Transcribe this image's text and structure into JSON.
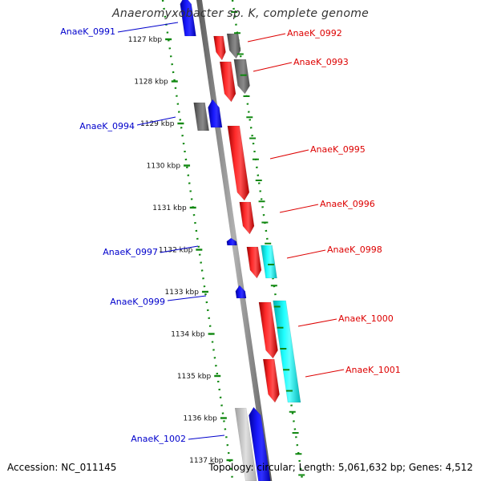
{
  "title": "Anaeromyxobacter sp. K, complete genome",
  "footer": {
    "accession": "Accession: NC_011145",
    "topology": "Topology: circular; Length: 5,061,632 bp; Genes: 4,512"
  },
  "colors": {
    "forward_cds": "#ff0000",
    "reverse_cds": "#0000ff",
    "cyan_gene": "#00e5e5",
    "gray_gene": "#707070",
    "light_gray_gene": "#c8c8c8",
    "backbone": "#8a8a8a",
    "scale_ticks": "#118811",
    "forward_label": "#dd0000",
    "reverse_label": "#0000cc"
  },
  "ruler": {
    "unit": "kbp",
    "ticks": [
      "1127 kbp",
      "1128 kbp",
      "1129 kbp",
      "1130 kbp",
      "1131 kbp",
      "1132 kbp",
      "1133 kbp",
      "1134 kbp",
      "1135 kbp",
      "1136 kbp",
      "1137 kbp"
    ]
  },
  "gene_labels": [
    {
      "text": "AnaeK_0991",
      "strand": "reverse"
    },
    {
      "text": "AnaeK_0992",
      "strand": "forward"
    },
    {
      "text": "AnaeK_0993",
      "strand": "forward"
    },
    {
      "text": "AnaeK_0994",
      "strand": "reverse"
    },
    {
      "text": "AnaeK_0995",
      "strand": "forward"
    },
    {
      "text": "AnaeK_0996",
      "strand": "forward"
    },
    {
      "text": "AnaeK_0997",
      "strand": "reverse"
    },
    {
      "text": "AnaeK_0998",
      "strand": "forward"
    },
    {
      "text": "AnaeK_0999",
      "strand": "reverse"
    },
    {
      "text": "AnaeK_1000",
      "strand": "forward"
    },
    {
      "text": "AnaeK_1001",
      "strand": "forward"
    },
    {
      "text": "AnaeK_1002",
      "strand": "reverse"
    }
  ]
}
